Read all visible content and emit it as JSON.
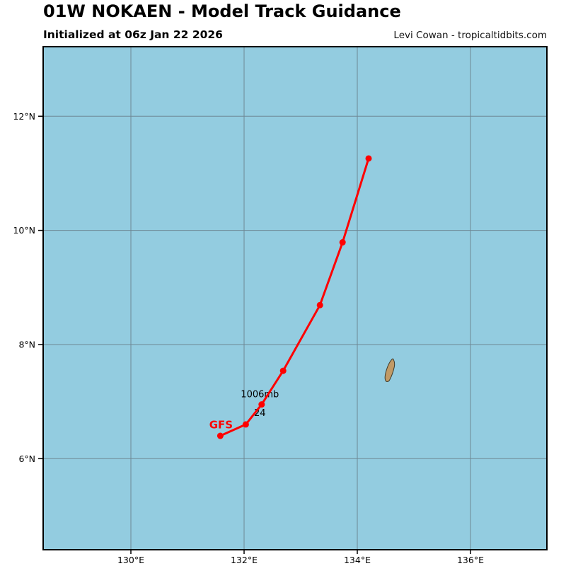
{
  "header": {
    "title": "01W NOKAEN - Model Track Guidance",
    "subtitle": "Initialized at 06z Jan 22 2026",
    "credit": "Levi Cowan - tropicaltidbits.com"
  },
  "colors": {
    "ocean": "#93cce0",
    "grid": "#6e8794",
    "frame": "#000000",
    "track": "#ff0000",
    "land": "#c19a66",
    "land_outline": "#3d3a2a",
    "annotation_text": "#000000"
  },
  "chart_data": {
    "type": "line",
    "title": "01W NOKAEN - Model Track Guidance",
    "subtitle": "Initialized at 06z Jan 22 2026",
    "attribution": "Levi Cowan - tropicaltidbits.com",
    "grid": true,
    "x_axis": {
      "unit": "longitude",
      "range_deg_east": [
        128.45,
        137.35
      ],
      "ticks": [
        {
          "value": 130,
          "label": "130°E"
        },
        {
          "value": 132,
          "label": "132°E"
        },
        {
          "value": 134,
          "label": "134°E"
        },
        {
          "value": 136,
          "label": "136°E"
        }
      ]
    },
    "y_axis": {
      "unit": "latitude",
      "range_deg_north": [
        4.4,
        13.2
      ],
      "ticks": [
        {
          "value": 6,
          "label": "6°N"
        },
        {
          "value": 8,
          "label": "8°N"
        },
        {
          "value": 10,
          "label": "10°N"
        },
        {
          "value": 12,
          "label": "12°N"
        }
      ]
    },
    "series": [
      {
        "name": "GFS",
        "color": "#ff0000",
        "points": [
          {
            "lon": 131.58,
            "lat": 6.4
          },
          {
            "lon": 132.03,
            "lat": 6.6
          },
          {
            "lon": 132.31,
            "lat": 6.95
          },
          {
            "lon": 132.69,
            "lat": 7.54
          },
          {
            "lon": 133.34,
            "lat": 8.69
          },
          {
            "lon": 133.74,
            "lat": 9.79
          },
          {
            "lon": 134.2,
            "lat": 11.26
          }
        ],
        "name_label": {
          "text": "GFS",
          "point_index": 0,
          "placement": "above"
        },
        "annotations": [
          {
            "text": "1006mb",
            "point_index": 2,
            "placement": "above"
          },
          {
            "text": "24",
            "point_index": 2,
            "placement": "below"
          }
        ]
      }
    ],
    "map_features": [
      {
        "name": "palau-island",
        "type": "land",
        "approx_lon": 134.57,
        "approx_lat": 7.53
      }
    ]
  }
}
